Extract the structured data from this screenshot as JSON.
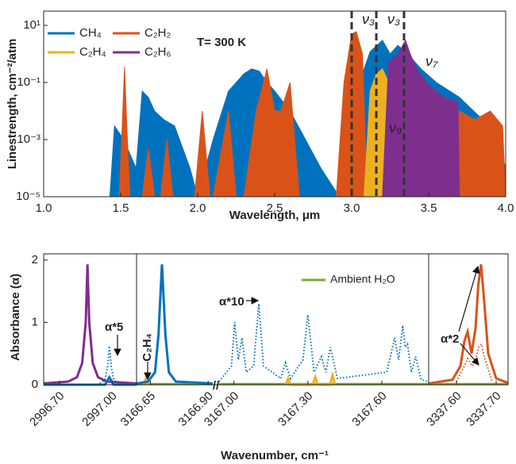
{
  "chart_data": [
    {
      "type": "line",
      "fill": true,
      "log_y": true,
      "xlabel": "Wavelength, μm",
      "ylabel": "Linestrength, cm⁻²/atm",
      "xlim": [
        1.0,
        4.0
      ],
      "ylim": [
        1e-05,
        31.6
      ],
      "xticks": [
        {
          "value": 1.0,
          "label": "1.0"
        },
        1.5,
        {
          "value": 2.0,
          "label": "2.0"
        },
        2.5,
        {
          "value": 3.0,
          "label": "3.0"
        },
        3.5,
        {
          "value": 4.0,
          "label": "4.0"
        }
      ],
      "yticks": [
        {
          "value": 10,
          "label": "10¹"
        },
        {
          "value": 0.1,
          "label": "10⁻¹"
        },
        {
          "value": 0.001,
          "label": "10⁻³"
        },
        {
          "value": 1e-05,
          "label": "10⁻⁵"
        }
      ],
      "vlines": [
        3.0,
        3.16,
        3.34
      ],
      "series": [
        {
          "name": "CH₄",
          "color": "#0072bd",
          "x": [
            1.43,
            1.46,
            1.52,
            1.6,
            1.64,
            1.68,
            1.72,
            1.78,
            1.85,
            1.95,
            2.0,
            2.05,
            2.1,
            2.2,
            2.3,
            2.35,
            2.4,
            2.45,
            2.5,
            2.6,
            2.7,
            2.8,
            2.92,
            2.95,
            3.05,
            3.12,
            3.2,
            3.25,
            3.3,
            3.38,
            3.45,
            3.55,
            3.7,
            3.85,
            3.95,
            4.0
          ],
          "values": [
            1e-05,
            0.003,
            0.001,
            0.0001,
            0.05,
            0.03,
            0.01,
            0.005,
            0.003,
            0.0001,
            1e-05,
            0.0001,
            0.001,
            0.05,
            0.2,
            0.3,
            0.25,
            0.1,
            0.05,
            0.01,
            0.001,
            0.0001,
            1e-05,
            0.001,
            0.1,
            1.2,
            3,
            1,
            2,
            0.8,
            0.3,
            0.1,
            0.03,
            0.005,
            0.001,
            0.0001
          ]
        },
        {
          "name": "C₂H₂",
          "color": "#d95319",
          "x": [
            1.49,
            1.51,
            1.525,
            1.54,
            1.56,
            1.64,
            1.68,
            1.72,
            1.76,
            1.8,
            1.84,
            1.98,
            2.03,
            2.08,
            2.1,
            2.2,
            2.25,
            2.3,
            2.38,
            2.45,
            2.5,
            2.54,
            2.6,
            2.66,
            2.9,
            2.95,
            3.0,
            3.03,
            3.07,
            3.1,
            3.3,
            3.6,
            3.7,
            3.8,
            3.9,
            3.98,
            4.0
          ],
          "values": [
            1e-05,
            0.003,
            0.35,
            0.003,
            1e-05,
            1e-05,
            0.0005,
            1e-05,
            1e-05,
            0.001,
            1e-05,
            1e-05,
            0.01,
            1e-05,
            1e-05,
            0.01,
            1e-05,
            1e-05,
            0.01,
            0.3,
            0.01,
            0.01,
            0.1,
            1e-05,
            1e-05,
            0.1,
            5,
            6,
            1,
            1e-05,
            1e-05,
            1e-05,
            0.01,
            0.005,
            0.01,
            0.003,
            1e-05
          ]
        },
        {
          "name": "C₂H₄",
          "color": "#edb120",
          "x": [
            3.08,
            3.12,
            3.16,
            3.2,
            3.24,
            3.26
          ],
          "values": [
            1e-05,
            0.05,
            0.2,
            0.3,
            0.1,
            1e-05
          ]
        },
        {
          "name": "C₂H₆",
          "color": "#7e2f8e",
          "x": [
            3.2,
            3.24,
            3.3,
            3.35,
            3.38,
            3.42,
            3.5,
            3.6,
            3.69,
            3.7
          ],
          "values": [
            1e-05,
            0.5,
            1,
            3,
            1,
            0.3,
            0.08,
            0.03,
            0.02,
            1e-05
          ]
        }
      ],
      "annotations": [
        {
          "text": "T= 300 K",
          "color": "#000000"
        },
        {
          "text": "ν₃",
          "color": "#d95319"
        },
        {
          "text": "ν₃",
          "color": "#0072bd"
        },
        {
          "text": "ν₉",
          "color": "#edb120"
        },
        {
          "text": "ν₇",
          "color": "#7e2f8e"
        }
      ]
    },
    {
      "type": "broken-line",
      "xlabel": "Wavenumber, cm⁻¹",
      "ylabel": "Absorbance (α)",
      "ylim": [
        0,
        2.1
      ],
      "yticks": [
        0,
        1,
        2
      ],
      "segments": [
        {
          "xlim": [
            2996.61,
            2997.14
          ],
          "xticks": [
            {
              "value": 2996.7,
              "label": "2996.70"
            },
            {
              "value": 2997.0,
              "label": "2997.00"
            }
          ],
          "series": [
            {
              "color": "#7e2f8e",
              "style": "solid",
              "x": [
                2996.61,
                2996.75,
                2996.8,
                2996.83,
                2996.85,
                2996.86,
                2996.87,
                2996.89,
                2996.92,
                2996.97,
                2997.14
              ],
              "values": [
                0.02,
                0.05,
                0.12,
                0.35,
                1,
                1.93,
                1,
                0.35,
                0.12,
                0.05,
                0.02
              ]
            },
            {
              "color": "#0072bd",
              "style": "solid",
              "x": [
                2996.61,
                2996.96,
                2996.985,
                2997.01,
                2997.14
              ],
              "values": [
                0,
                0,
                0.12,
                0,
                0
              ]
            },
            {
              "color": "#0072bd",
              "style": "dotted",
              "x": [
                2996.93,
                2996.96,
                2996.975,
                2996.985,
                2996.995,
                2997.01,
                2997.04
              ],
              "values": [
                0.02,
                0.08,
                0.3,
                0.62,
                0.3,
                0.08,
                0.02
              ]
            }
          ]
        },
        {
          "xlim": [
            3166.59,
            3166.92
          ],
          "xticks": [
            {
              "value": 3166.65,
              "label": "3166.65"
            },
            {
              "value": 3166.9,
              "label": "3166.90"
            }
          ],
          "series": [
            {
              "color": "#77ac30",
              "style": "solid",
              "x": [
                3166.59,
                3166.92
              ],
              "values": [
                0.01,
                0.01
              ]
            },
            {
              "color": "#edb120",
              "style": "solid",
              "x": [
                3166.62,
                3166.63,
                3166.64
              ],
              "values": [
                0,
                0.1,
                0
              ]
            },
            {
              "color": "#0072bd",
              "style": "solid",
              "x": [
                3166.59,
                3166.64,
                3166.67,
                3166.685,
                3166.7,
                3166.715,
                3166.73,
                3166.76,
                3166.92
              ],
              "values": [
                0.02,
                0.05,
                0.2,
                0.8,
                1.93,
                0.8,
                0.2,
                0.05,
                0.02
              ]
            }
          ]
        },
        {
          "xlim": [
            3166.94,
            3167.79
          ],
          "xticks": [
            {
              "value": 3167.0,
              "label": "3167.00"
            },
            {
              "value": 3167.3,
              "label": "3167.30"
            },
            {
              "value": 3167.6,
              "label": "3167.60"
            }
          ],
          "series": [
            {
              "name": "Ambient H₂O",
              "color": "#77ac30",
              "style": "solid",
              "x": [
                3166.94,
                3167.79
              ],
              "values": [
                0.01,
                0.01
              ]
            },
            {
              "color": "#edb120",
              "style": "solid",
              "x": [
                3167.21,
                3167.22,
                3167.23,
                3167.32,
                3167.33,
                3167.34,
                3167.39,
                3167.4,
                3167.41
              ],
              "values": [
                0,
                0.1,
                0,
                0,
                0.12,
                0,
                0,
                0.15,
                0
              ]
            },
            {
              "color": "#0072bd",
              "style": "dotted",
              "x": [
                3166.94,
                3166.99,
                3167.003,
                3167.018,
                3167.033,
                3167.05,
                3167.08,
                3167.101,
                3167.12,
                3167.19,
                3167.209,
                3167.23,
                3167.28,
                3167.3,
                3167.325,
                3167.355,
                3167.373,
                3167.391,
                3167.42,
                3167.62,
                3167.652,
                3167.668,
                3167.685,
                3167.695,
                3167.704,
                3167.72,
                3167.737,
                3167.76,
                3167.79
              ],
              "values": [
                0.05,
                0.3,
                1.0,
                0.4,
                0.75,
                0.2,
                0.3,
                1.3,
                0.3,
                0.1,
                0.35,
                0.1,
                0.4,
                1.12,
                0.2,
                0.45,
                0.2,
                0.6,
                0.1,
                0.2,
                0.75,
                0.4,
                0.95,
                0.6,
                0.65,
                0.2,
                0.45,
                0.08,
                0.05
              ]
            }
          ]
        },
        {
          "xlim": [
            3337.53,
            3337.73
          ],
          "xticks": [
            {
              "value": 3337.6,
              "label": "3337.60"
            },
            {
              "value": 3337.7,
              "label": "3337.70"
            }
          ],
          "series": [
            {
              "color": "#77ac30",
              "style": "solid",
              "x": [
                3337.53,
                3337.73
              ],
              "values": [
                0.01,
                0.01
              ]
            },
            {
              "color": "#d95319",
              "style": "solid",
              "x": [
                3337.53,
                3337.59,
                3337.61,
                3337.62,
                3337.628,
                3337.638,
                3337.648,
                3337.655,
                3337.662,
                3337.669,
                3337.68,
                3337.7,
                3337.73
              ],
              "values": [
                0.02,
                0.08,
                0.3,
                0.7,
                0.85,
                0.5,
                0.9,
                1.6,
                1.93,
                1.4,
                0.5,
                0.1,
                0.03
              ]
            },
            {
              "color": "#d95319",
              "style": "dotted",
              "x": [
                3337.6,
                3337.62,
                3337.628,
                3337.64,
                3337.65,
                3337.656,
                3337.663,
                3337.67,
                3337.69
              ],
              "values": [
                0.05,
                0.3,
                0.42,
                0.3,
                0.45,
                0.6,
                0.65,
                0.45,
                0.05
              ]
            }
          ]
        }
      ],
      "annotations": [
        {
          "text": "α*5"
        },
        {
          "text": "α*10"
        },
        {
          "text": "α*2"
        },
        {
          "text": "C₂H₄"
        },
        {
          "text": "//"
        }
      ]
    }
  ]
}
